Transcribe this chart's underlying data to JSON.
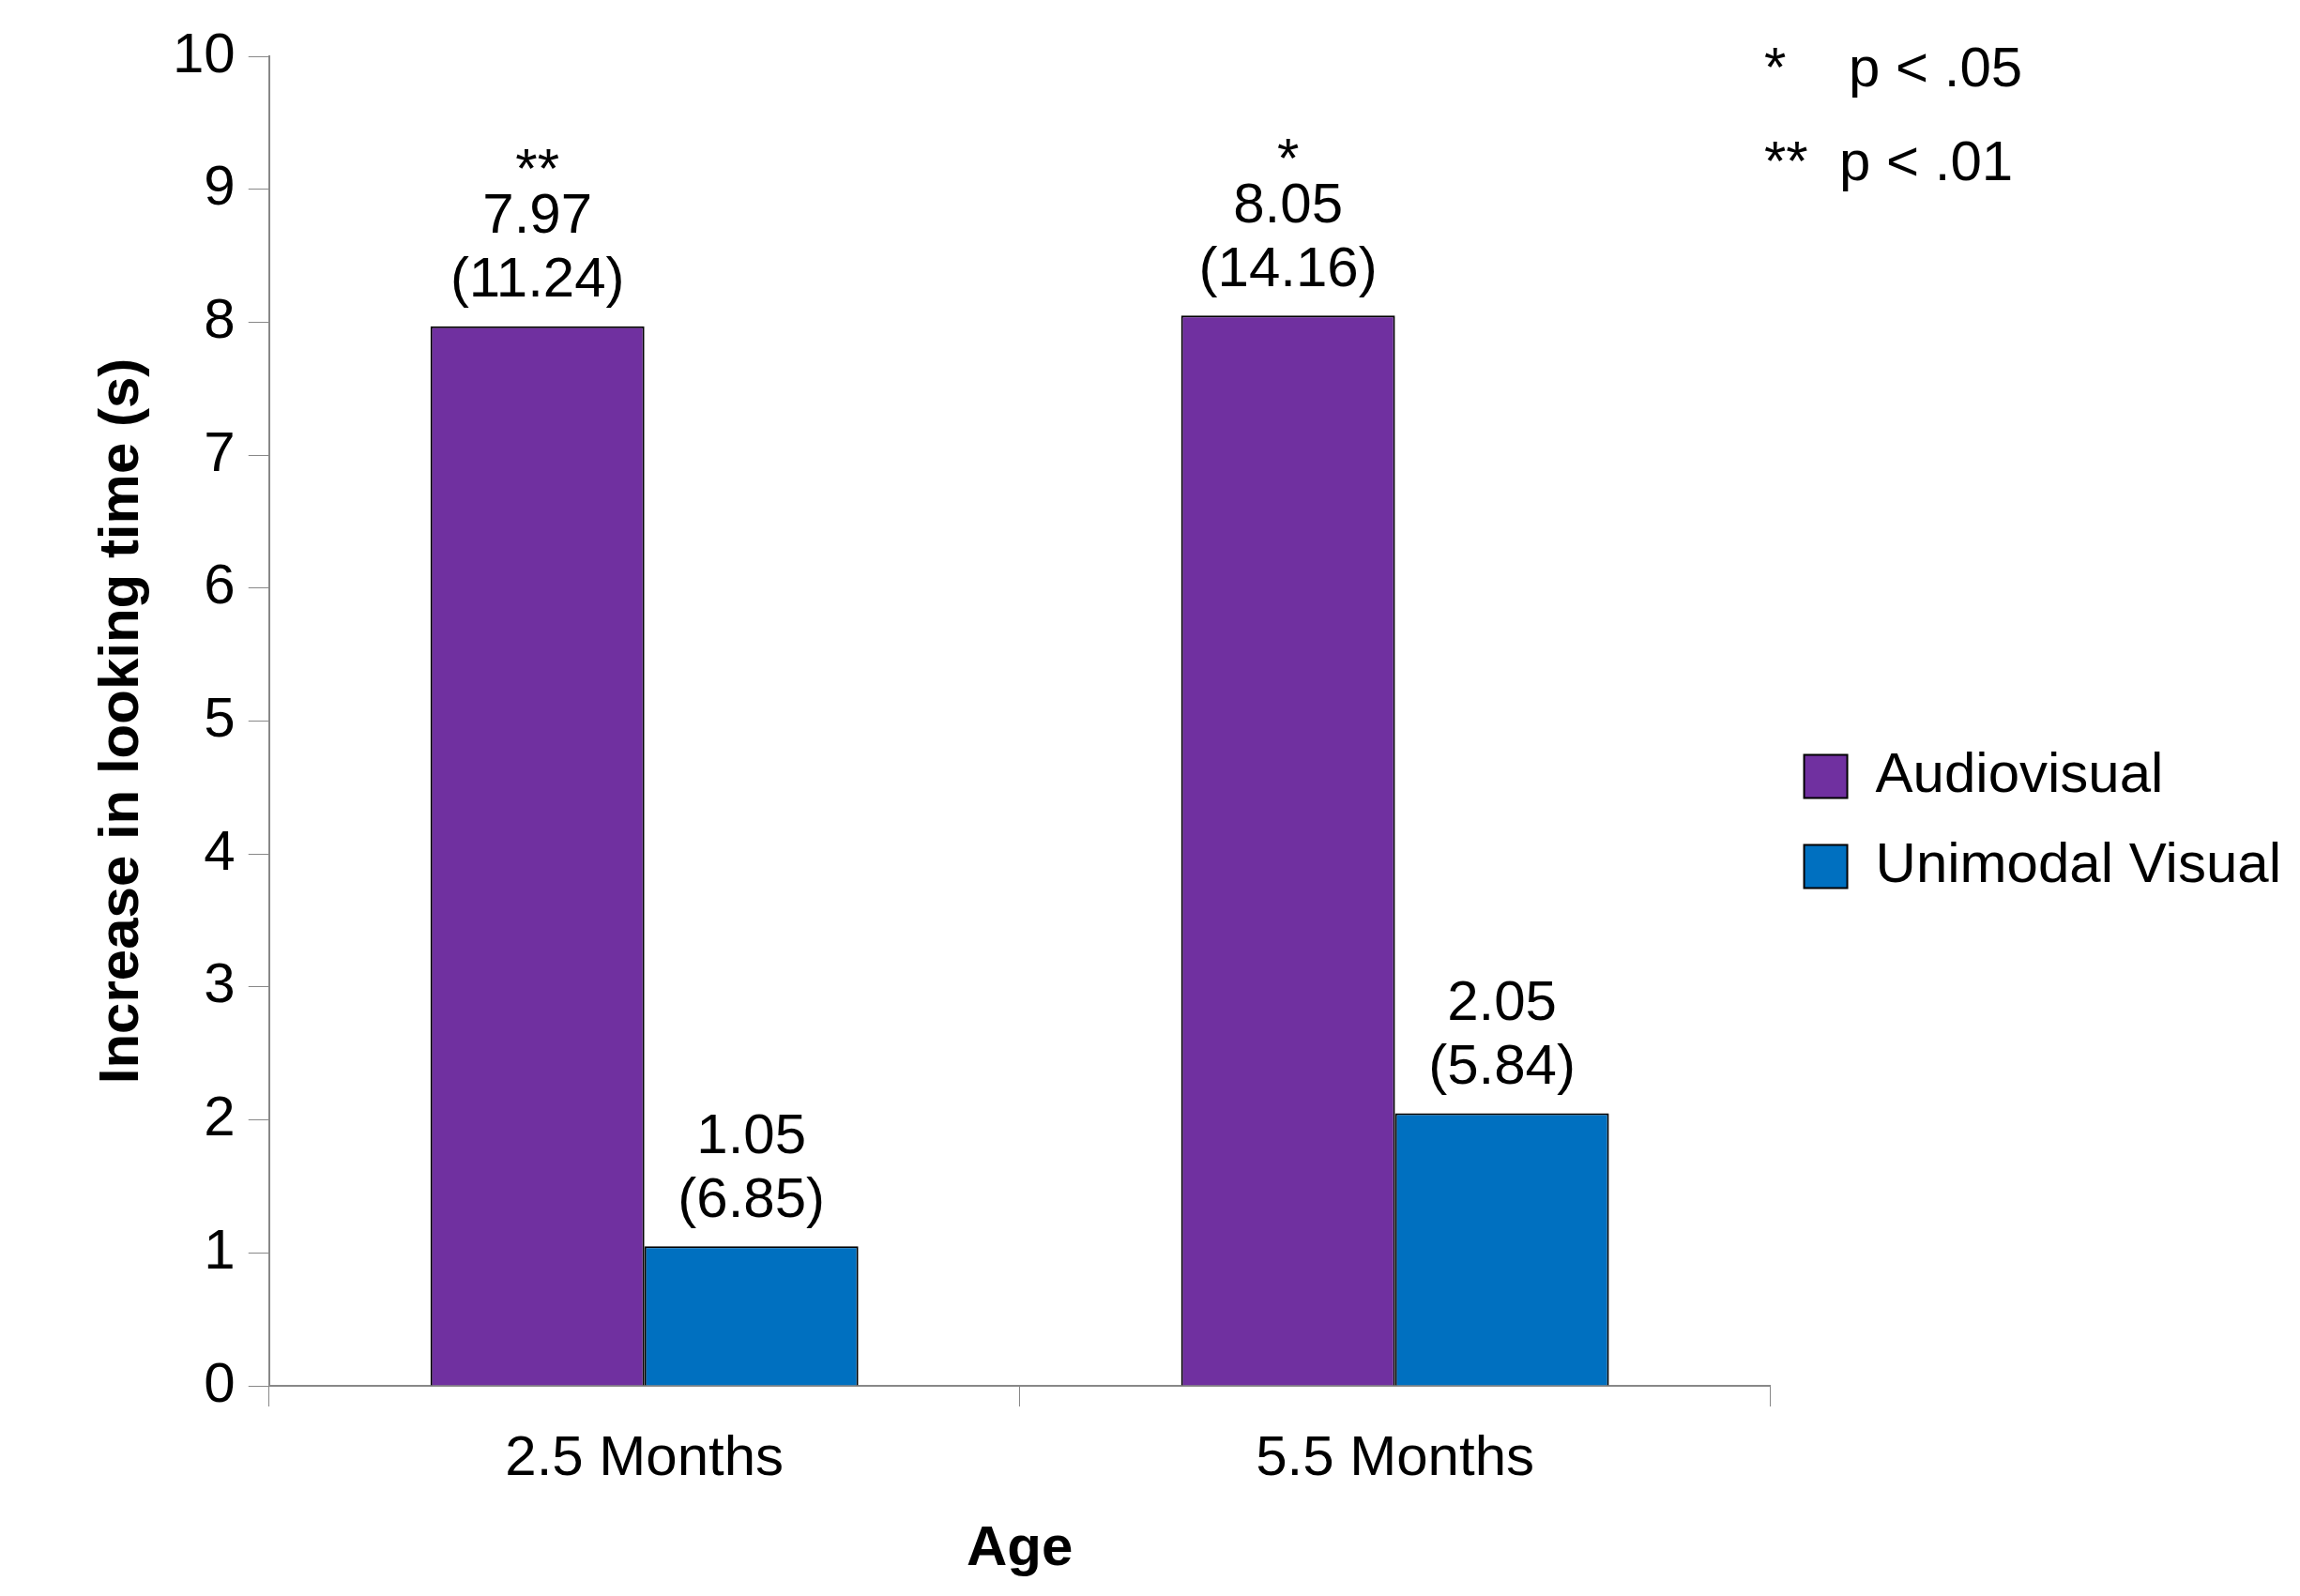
{
  "chart_data": {
    "type": "bar",
    "xlabel": "Age",
    "ylabel": "Increase in looking time (s)",
    "categories": [
      "2.5 Months",
      "5.5 Months"
    ],
    "series": [
      {
        "name": "Audiovisual",
        "color": "#7030a0",
        "values": [
          7.97,
          8.05
        ],
        "value_labels": [
          "7.97\n(11.24)",
          "8.05\n(14.16)"
        ]
      },
      {
        "name": "Unimodal Visual",
        "color": "#0070c0",
        "values": [
          1.05,
          2.05
        ],
        "value_labels": [
          "1.05\n(6.85)",
          "2.05\n(5.84)"
        ]
      }
    ],
    "ylim": [
      0,
      10
    ],
    "yticks": [
      0,
      1,
      2,
      3,
      4,
      5,
      6,
      7,
      8,
      9,
      10
    ],
    "legend": "right",
    "annotations": [
      {
        "text": "**",
        "x": "2.5 Months",
        "y": 7.97
      },
      {
        "text": "*",
        "x": "5.5 Months",
        "y": 8.05
      },
      "*    p < .05",
      "**  p < .01"
    ]
  }
}
